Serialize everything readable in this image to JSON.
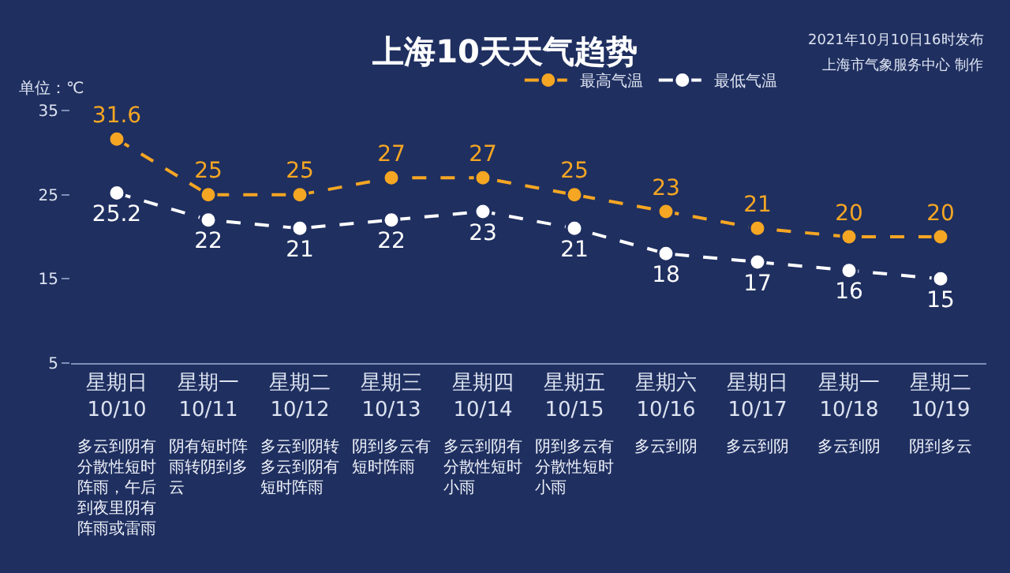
{
  "chart_data": {
    "type": "line",
    "title": "上海10天天气趋势",
    "ylabel": "单位：℃",
    "categories": [
      "星期日\n10/10",
      "星期一\n10/11",
      "星期二\n10/12",
      "星期三\n10/13",
      "星期四\n10/14",
      "星期五\n10/15",
      "星期六\n10/16",
      "星期日\n10/17",
      "星期一\n10/18",
      "星期二\n10/19"
    ],
    "series": [
      {
        "name": "最高气温",
        "color": "#f5a623",
        "values": [
          31.6,
          25,
          25,
          27,
          27,
          25,
          23,
          21,
          20,
          20
        ]
      },
      {
        "name": "最低气温",
        "color": "#ffffff",
        "values": [
          25.2,
          22,
          21,
          22,
          23,
          21,
          18,
          17,
          16,
          15
        ]
      }
    ],
    "ylim": [
      5,
      35
    ],
    "yticks": [
      5,
      15,
      25,
      35
    ],
    "grid": false,
    "legend": "top right",
    "marker": "circle",
    "line_style": "dashed",
    "data_labels": true,
    "annotations": [
      "多云到阴有分散性短时阵雨，午后到夜里阴有阵雨或雷雨",
      "阴有短时阵雨转阴到多云",
      "多云到阴转多云到阴有短时阵雨",
      "阴到多云有短时阵雨",
      "多云到阴有分散性短时小雨",
      "阴到多云有分散性短时小雨",
      "多云到阴",
      "多云到阴",
      "多云到阴",
      "阴到多云",
      "2021年10月10日16时发布",
      "上海市气象服务中心 制作"
    ]
  }
}
